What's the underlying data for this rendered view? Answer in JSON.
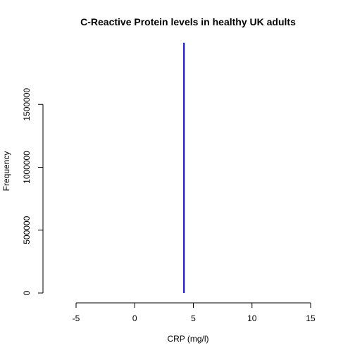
{
  "chart_data": {
    "type": "bar",
    "title": "C-Reactive Protein levels in healthy UK adults",
    "xlabel": "CRP (mg/l)",
    "ylabel": "Frequency",
    "xlim": [
      -5,
      15
    ],
    "ylim": [
      0,
      2000000
    ],
    "x_ticks": [
      -5,
      0,
      5,
      10,
      15
    ],
    "y_ticks": [
      0,
      500000,
      1000000,
      1500000
    ],
    "grid": false,
    "series": [
      {
        "x": [
          4.2
        ],
        "values": [
          1990000
        ],
        "color": "#0000CD"
      }
    ]
  }
}
